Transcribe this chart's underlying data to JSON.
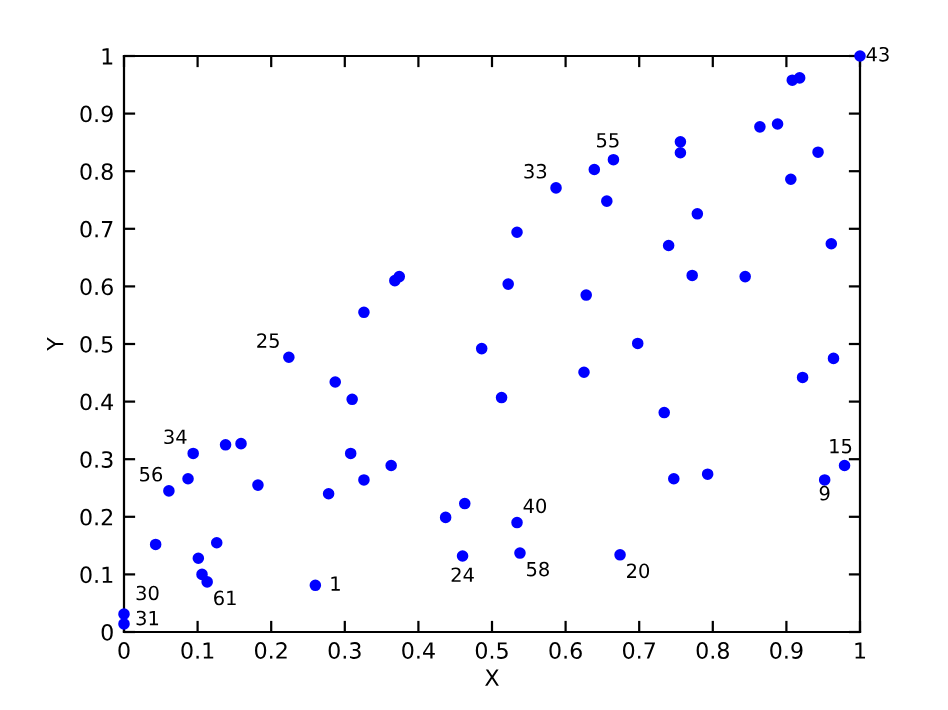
{
  "chart_data": {
    "type": "scatter",
    "xlabel": "X",
    "ylabel": "Y",
    "x": [
      0.0,
      0.0,
      0.224,
      0.287,
      0.31,
      0.486,
      0.094,
      0.138,
      0.159,
      0.308,
      0.363,
      0.087,
      0.061,
      0.182,
      0.326,
      0.278,
      0.043,
      0.126,
      0.101,
      0.106,
      0.113,
      0.26,
      0.437,
      0.463,
      0.46,
      0.698,
      0.625,
      0.513,
      0.734,
      0.922,
      0.964,
      0.979,
      0.952,
      0.747,
      0.793,
      0.534,
      0.538,
      0.674,
      1.0,
      0.908,
      0.918,
      0.864,
      0.888,
      0.943,
      0.756,
      0.756,
      0.665,
      0.639,
      0.587,
      0.906,
      0.656,
      0.779,
      0.534,
      0.74,
      0.961,
      0.522,
      0.772,
      0.844,
      0.628,
      0.368,
      0.374,
      0.326
    ],
    "values": [
      0.031,
      0.014,
      0.477,
      0.434,
      0.404,
      0.492,
      0.31,
      0.325,
      0.327,
      0.31,
      0.289,
      0.266,
      0.245,
      0.255,
      0.264,
      0.24,
      0.152,
      0.155,
      0.128,
      0.1,
      0.087,
      0.081,
      0.199,
      0.223,
      0.132,
      0.501,
      0.451,
      0.407,
      0.381,
      0.442,
      0.475,
      0.289,
      0.264,
      0.266,
      0.274,
      0.19,
      0.137,
      0.134,
      1.0,
      0.958,
      0.962,
      0.877,
      0.882,
      0.833,
      0.851,
      0.832,
      0.82,
      0.803,
      0.771,
      0.786,
      0.748,
      0.726,
      0.694,
      0.671,
      0.674,
      0.604,
      0.619,
      0.617,
      0.585,
      0.61,
      0.617,
      0.555
    ],
    "color": "#0000ff",
    "marker": "circle",
    "xlim": [
      0,
      1
    ],
    "ylim": [
      0,
      1
    ],
    "xticks": [
      0,
      0.1,
      0.2,
      0.3,
      0.4,
      0.5,
      0.6,
      0.7,
      0.8,
      0.9,
      1
    ],
    "yticks": [
      0,
      0.1,
      0.2,
      0.3,
      0.4,
      0.5,
      0.6,
      0.7,
      0.8,
      0.9,
      1
    ],
    "grid": false,
    "annotations": [
      {
        "text": "30",
        "x": 0.0,
        "y": 0.031
      },
      {
        "text": "31",
        "x": 0.0,
        "y": 0.014
      },
      {
        "text": "25",
        "x": 0.224,
        "y": 0.477
      },
      {
        "text": "34",
        "x": 0.094,
        "y": 0.31
      },
      {
        "text": "56",
        "x": 0.061,
        "y": 0.245
      },
      {
        "text": "61",
        "x": 0.113,
        "y": 0.087
      },
      {
        "text": "1",
        "x": 0.26,
        "y": 0.081
      },
      {
        "text": "24",
        "x": 0.46,
        "y": 0.132
      },
      {
        "text": "15",
        "x": 0.979,
        "y": 0.289
      },
      {
        "text": "9",
        "x": 0.952,
        "y": 0.264
      },
      {
        "text": "40",
        "x": 0.534,
        "y": 0.19
      },
      {
        "text": "58",
        "x": 0.538,
        "y": 0.137
      },
      {
        "text": "20",
        "x": 0.674,
        "y": 0.134
      },
      {
        "text": "43",
        "x": 1.0,
        "y": 1.0
      },
      {
        "text": "55",
        "x": 0.665,
        "y": 0.82
      },
      {
        "text": "33",
        "x": 0.587,
        "y": 0.771
      }
    ]
  }
}
